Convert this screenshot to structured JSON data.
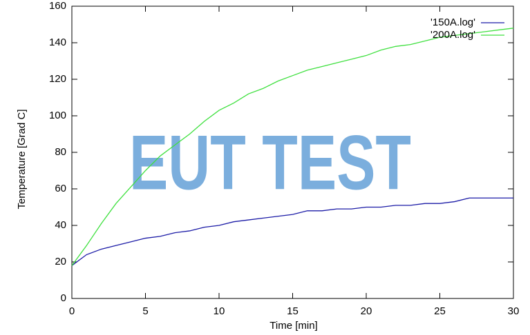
{
  "chart_data": {
    "type": "line",
    "xlabel": "Time [min]",
    "ylabel": "Temperature [Grad C]",
    "watermark": "EUT TEST",
    "x": [
      0,
      1,
      2,
      3,
      4,
      5,
      6,
      7,
      8,
      9,
      10,
      11,
      12,
      13,
      14,
      15,
      16,
      17,
      18,
      19,
      20,
      21,
      22,
      23,
      24,
      25,
      26,
      27,
      28,
      29,
      30
    ],
    "series": [
      {
        "name": "'150A.log'",
        "color": "#1a1aa6",
        "values": [
          18,
          24,
          27,
          29,
          31,
          33,
          34,
          36,
          37,
          39,
          40,
          42,
          43,
          44,
          45,
          46,
          48,
          48,
          49,
          49,
          50,
          50,
          51,
          51,
          52,
          52,
          53,
          55,
          55,
          55,
          55
        ]
      },
      {
        "name": "'200A.log'",
        "color": "#3ee03e",
        "values": [
          18,
          29,
          41,
          52,
          61,
          70,
          78,
          84,
          90,
          97,
          103,
          107,
          112,
          115,
          119,
          122,
          125,
          127,
          129,
          131,
          133,
          136,
          138,
          139,
          141,
          143,
          144,
          145,
          146,
          147,
          148
        ]
      }
    ],
    "xlim": [
      0,
      30
    ],
    "xticks": [
      0,
      5,
      10,
      15,
      20,
      25,
      30
    ],
    "ylim": [
      0,
      160
    ],
    "yticks": [
      0,
      20,
      40,
      60,
      80,
      100,
      120,
      140,
      160
    ],
    "legend": "top-right",
    "grid": false
  }
}
